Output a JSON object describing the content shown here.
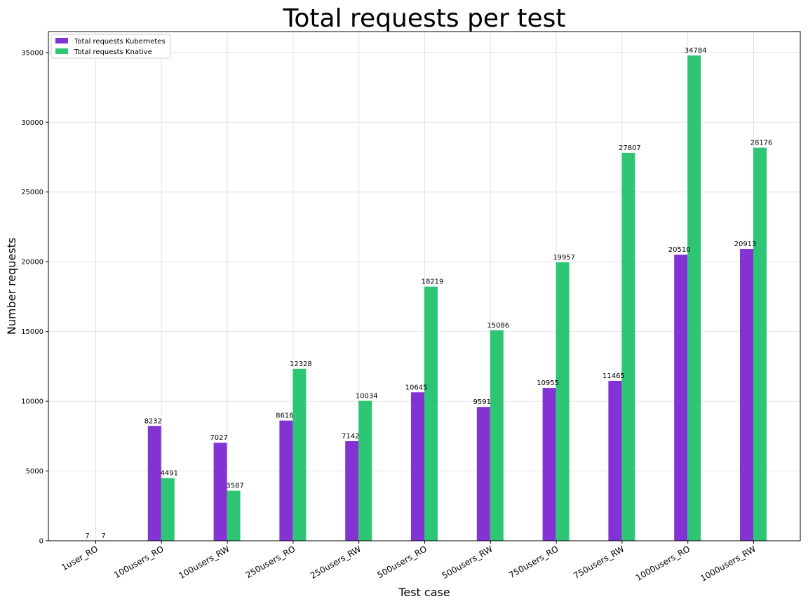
{
  "chart_data": {
    "type": "bar",
    "title": "Total requests per test",
    "xlabel": "Test case",
    "ylabel": "Number requests",
    "categories": [
      "1user_RO",
      "100users_RO",
      "100users_RW",
      "250users_RO",
      "250users_RW",
      "500users_RO",
      "500users_RW",
      "750users_RO",
      "750users_RW",
      "1000users_RO",
      "1000users_RW"
    ],
    "series": [
      {
        "name": "Total requests Kubernetes",
        "color": "#8333d4",
        "values": [
          7,
          8232,
          7027,
          8616,
          7142,
          10645,
          9591,
          10955,
          11465,
          20510,
          20913
        ]
      },
      {
        "name": "Total requests Knative",
        "color": "#2ec574",
        "values": [
          7,
          4491,
          3587,
          12328,
          10034,
          18219,
          15086,
          19957,
          27807,
          34784,
          28176
        ]
      }
    ],
    "ylim": [
      0,
      36500
    ],
    "yticks": [
      0,
      5000,
      10000,
      15000,
      20000,
      25000,
      30000,
      35000
    ],
    "grid": true,
    "legend_position": "top-left"
  }
}
